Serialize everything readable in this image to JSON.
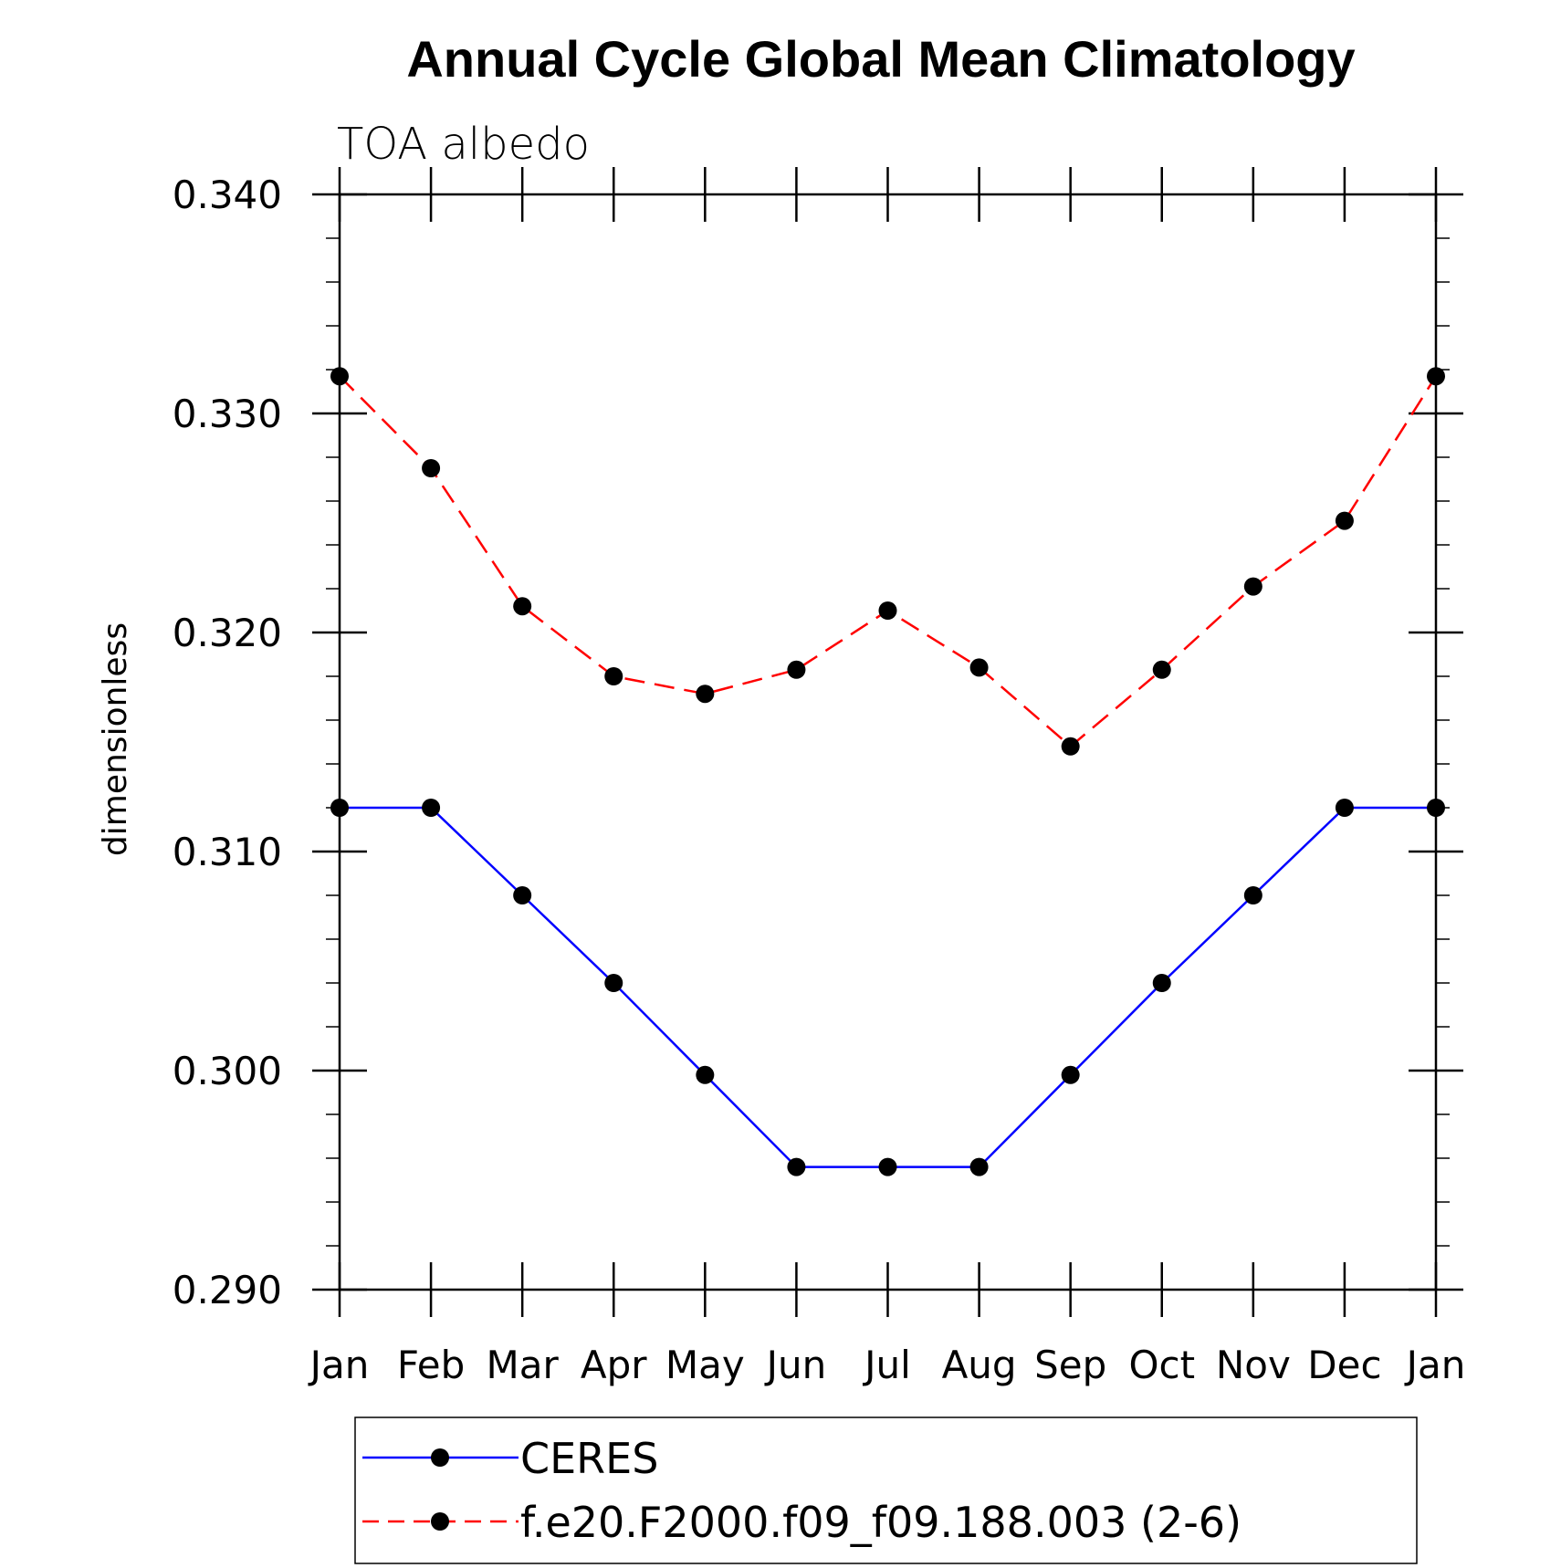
{
  "chart_data": {
    "type": "line",
    "title": "Annual Cycle Global Mean Climatology",
    "subtitle": "TOA albedo",
    "ylabel": "dimensionless",
    "xlabel": "",
    "categories": [
      "Jan",
      "Feb",
      "Mar",
      "Apr",
      "May",
      "Jun",
      "Jul",
      "Aug",
      "Sep",
      "Oct",
      "Nov",
      "Dec",
      "Jan"
    ],
    "ylim": [
      0.29,
      0.34
    ],
    "yticks": [
      0.29,
      0.3,
      0.31,
      0.32,
      0.33,
      0.34
    ],
    "ytick_labels": [
      "0.290",
      "0.300",
      "0.310",
      "0.320",
      "0.330",
      "0.340"
    ],
    "y_minor_step": 0.002,
    "series": [
      {
        "name": "CERES",
        "color": "#0000ff",
        "style": "solid",
        "marker": "dot",
        "values": [
          0.312,
          0.312,
          0.308,
          0.304,
          0.2998,
          0.2956,
          0.2956,
          0.2956,
          0.2998,
          0.304,
          0.308,
          0.312,
          0.312
        ]
      },
      {
        "name": "f.e20.F2000.f09_f09.188.003 (2-6)",
        "color": "#ff0000",
        "style": "dashed",
        "marker": "dot",
        "values": [
          0.3317,
          0.3275,
          0.3212,
          0.318,
          0.3172,
          0.3183,
          0.321,
          0.3184,
          0.3148,
          0.3183,
          0.3221,
          0.3251,
          0.3317
        ]
      }
    ],
    "legend_position": "bottom"
  }
}
